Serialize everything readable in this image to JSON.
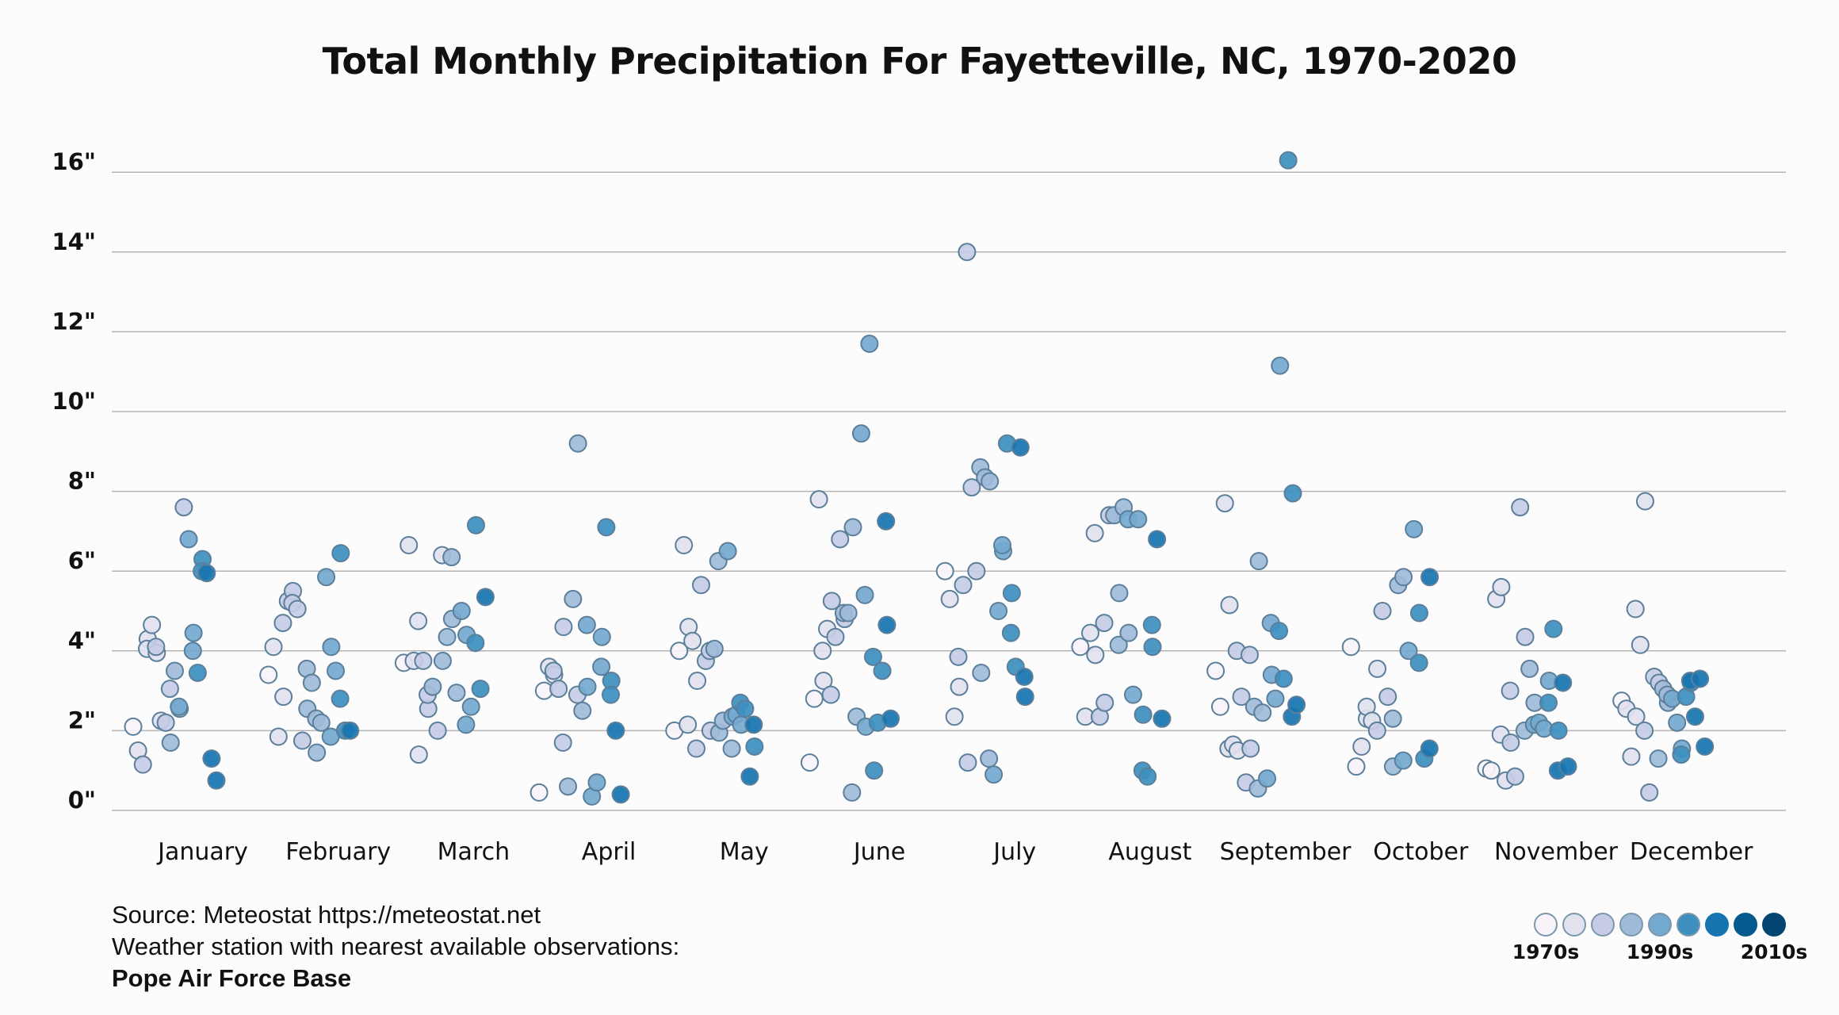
{
  "chart_data": {
    "type": "scatter",
    "title": "Total Monthly Precipitation For Fayetteville, NC, 1970-2020",
    "xlabel": "",
    "ylabel": "",
    "ylim": [
      0,
      16.5
    ],
    "y_ticks": [
      "0\"",
      "2\"",
      "4\"",
      "6\"",
      "8\"",
      "10\"",
      "12\"",
      "14\"",
      "16\""
    ],
    "y_tick_values": [
      0,
      2,
      4,
      6,
      8,
      10,
      12,
      14,
      16
    ],
    "grid": "horizontal",
    "categories": [
      "January",
      "February",
      "March",
      "April",
      "May",
      "June",
      "July",
      "August",
      "September",
      "October",
      "November",
      "December"
    ],
    "point_encoding": "each point is [precipitation inches, decade shade index 0-8]",
    "series": [
      {
        "month": "January",
        "points": [
          [
            2.1,
            0
          ],
          [
            1.5,
            1
          ],
          [
            1.15,
            2
          ],
          [
            4.3,
            1
          ],
          [
            4.05,
            1
          ],
          [
            4.65,
            1
          ],
          [
            3.95,
            1
          ],
          [
            4.1,
            2
          ],
          [
            2.25,
            1
          ],
          [
            2.2,
            2
          ],
          [
            1.7,
            3
          ],
          [
            3.05,
            2
          ],
          [
            3.5,
            3
          ],
          [
            2.55,
            3
          ],
          [
            2.6,
            4
          ],
          [
            7.6,
            2
          ],
          [
            6.8,
            4
          ],
          [
            4.45,
            4
          ],
          [
            4.0,
            4
          ],
          [
            3.45,
            5
          ],
          [
            6.3,
            5
          ],
          [
            6.0,
            5
          ],
          [
            5.95,
            6
          ],
          [
            1.3,
            6
          ],
          [
            0.75,
            6
          ]
        ]
      },
      {
        "month": "February",
        "points": [
          [
            3.4,
            0
          ],
          [
            4.1,
            1
          ],
          [
            1.85,
            1
          ],
          [
            2.85,
            1
          ],
          [
            4.7,
            2
          ],
          [
            5.25,
            2
          ],
          [
            5.5,
            2
          ],
          [
            5.2,
            2
          ],
          [
            5.05,
            2
          ],
          [
            1.75,
            2
          ],
          [
            2.55,
            3
          ],
          [
            3.55,
            3
          ],
          [
            3.2,
            3
          ],
          [
            1.45,
            3
          ],
          [
            2.3,
            3
          ],
          [
            2.2,
            3
          ],
          [
            5.85,
            4
          ],
          [
            4.1,
            4
          ],
          [
            1.85,
            4
          ],
          [
            3.5,
            4
          ],
          [
            6.45,
            5
          ],
          [
            2.8,
            5
          ],
          [
            2.0,
            5
          ],
          [
            2.0,
            6
          ]
        ]
      },
      {
        "month": "March",
        "points": [
          [
            3.7,
            0
          ],
          [
            6.65,
            1
          ],
          [
            3.75,
            1
          ],
          [
            1.4,
            1
          ],
          [
            4.75,
            1
          ],
          [
            3.75,
            2
          ],
          [
            2.55,
            2
          ],
          [
            2.9,
            2
          ],
          [
            3.1,
            3
          ],
          [
            2.0,
            2
          ],
          [
            3.75,
            3
          ],
          [
            6.4,
            1
          ],
          [
            4.35,
            3
          ],
          [
            4.8,
            3
          ],
          [
            6.35,
            3
          ],
          [
            2.95,
            3
          ],
          [
            5.0,
            4
          ],
          [
            4.4,
            4
          ],
          [
            2.15,
            4
          ],
          [
            2.6,
            4
          ],
          [
            7.15,
            5
          ],
          [
            4.2,
            5
          ],
          [
            3.05,
            5
          ],
          [
            5.35,
            6
          ]
        ]
      },
      {
        "month": "April",
        "points": [
          [
            0.45,
            0
          ],
          [
            3.0,
            0
          ],
          [
            3.6,
            1
          ],
          [
            3.4,
            1
          ],
          [
            3.5,
            2
          ],
          [
            3.05,
            2
          ],
          [
            4.6,
            2
          ],
          [
            1.7,
            2
          ],
          [
            0.6,
            3
          ],
          [
            5.3,
            3
          ],
          [
            9.2,
            3
          ],
          [
            2.9,
            2
          ],
          [
            2.5,
            3
          ],
          [
            3.1,
            4
          ],
          [
            4.65,
            4
          ],
          [
            0.35,
            4
          ],
          [
            0.7,
            4
          ],
          [
            4.35,
            4
          ],
          [
            3.6,
            4
          ],
          [
            7.1,
            5
          ],
          [
            3.25,
            5
          ],
          [
            2.9,
            5
          ],
          [
            2.0,
            6
          ],
          [
            0.4,
            6
          ]
        ]
      },
      {
        "month": "May",
        "points": [
          [
            2.0,
            0
          ],
          [
            4.0,
            0
          ],
          [
            6.65,
            1
          ],
          [
            4.6,
            1
          ],
          [
            2.15,
            1
          ],
          [
            4.25,
            1
          ],
          [
            3.25,
            1
          ],
          [
            1.55,
            2
          ],
          [
            5.65,
            2
          ],
          [
            3.75,
            2
          ],
          [
            2.0,
            2
          ],
          [
            4.0,
            2
          ],
          [
            4.05,
            3
          ],
          [
            1.95,
            3
          ],
          [
            6.25,
            3
          ],
          [
            2.25,
            3
          ],
          [
            6.5,
            4
          ],
          [
            2.35,
            4
          ],
          [
            1.55,
            3
          ],
          [
            2.4,
            4
          ],
          [
            2.15,
            4
          ],
          [
            2.7,
            5
          ],
          [
            2.55,
            5
          ],
          [
            0.85,
            6
          ],
          [
            1.6,
            5
          ],
          [
            2.15,
            6
          ]
        ]
      },
      {
        "month": "June",
        "points": [
          [
            1.2,
            0
          ],
          [
            2.8,
            0
          ],
          [
            7.8,
            1
          ],
          [
            3.25,
            1
          ],
          [
            4.0,
            1
          ],
          [
            4.55,
            1
          ],
          [
            5.25,
            2
          ],
          [
            2.9,
            2
          ],
          [
            4.35,
            2
          ],
          [
            6.8,
            2
          ],
          [
            4.8,
            2
          ],
          [
            4.95,
            3
          ],
          [
            4.95,
            3
          ],
          [
            7.1,
            3
          ],
          [
            0.45,
            3
          ],
          [
            2.35,
            3
          ],
          [
            9.45,
            4
          ],
          [
            2.1,
            4
          ],
          [
            5.4,
            4
          ],
          [
            11.7,
            4
          ],
          [
            1.0,
            5
          ],
          [
            3.85,
            5
          ],
          [
            2.2,
            5
          ],
          [
            3.5,
            5
          ],
          [
            4.65,
            6
          ],
          [
            7.25,
            6
          ],
          [
            2.3,
            6
          ]
        ]
      },
      {
        "month": "July",
        "points": [
          [
            6.0,
            0
          ],
          [
            5.3,
            1
          ],
          [
            2.35,
            1
          ],
          [
            3.1,
            1
          ],
          [
            3.85,
            2
          ],
          [
            5.65,
            2
          ],
          [
            1.2,
            2
          ],
          [
            14.0,
            2
          ],
          [
            8.1,
            2
          ],
          [
            6.0,
            2
          ],
          [
            3.45,
            3
          ],
          [
            8.6,
            3
          ],
          [
            8.35,
            3
          ],
          [
            8.25,
            3
          ],
          [
            1.3,
            3
          ],
          [
            0.9,
            4
          ],
          [
            5.0,
            4
          ],
          [
            6.5,
            4
          ],
          [
            6.65,
            4
          ],
          [
            9.2,
            5
          ],
          [
            5.45,
            5
          ],
          [
            4.45,
            5
          ],
          [
            3.6,
            5
          ],
          [
            9.1,
            6
          ],
          [
            2.85,
            6
          ],
          [
            3.35,
            6
          ]
        ]
      },
      {
        "month": "August",
        "points": [
          [
            4.1,
            0
          ],
          [
            2.35,
            1
          ],
          [
            4.45,
            1
          ],
          [
            3.9,
            1
          ],
          [
            6.95,
            1
          ],
          [
            2.35,
            2
          ],
          [
            2.7,
            2
          ],
          [
            4.7,
            2
          ],
          [
            7.4,
            2
          ],
          [
            7.4,
            3
          ],
          [
            5.45,
            3
          ],
          [
            4.15,
            3
          ],
          [
            7.6,
            3
          ],
          [
            4.45,
            3
          ],
          [
            7.3,
            4
          ],
          [
            2.9,
            4
          ],
          [
            7.3,
            4
          ],
          [
            2.4,
            5
          ],
          [
            1.0,
            5
          ],
          [
            0.85,
            5
          ],
          [
            4.1,
            5
          ],
          [
            4.65,
            5
          ],
          [
            6.8,
            6
          ],
          [
            2.3,
            6
          ]
        ]
      },
      {
        "month": "September",
        "points": [
          [
            3.5,
            0
          ],
          [
            2.6,
            0
          ],
          [
            7.7,
            1
          ],
          [
            5.15,
            1
          ],
          [
            1.55,
            1
          ],
          [
            1.65,
            1
          ],
          [
            1.5,
            1
          ],
          [
            4.0,
            2
          ],
          [
            2.85,
            2
          ],
          [
            0.7,
            2
          ],
          [
            1.55,
            2
          ],
          [
            3.9,
            2
          ],
          [
            2.6,
            3
          ],
          [
            6.25,
            3
          ],
          [
            0.55,
            3
          ],
          [
            2.45,
            3
          ],
          [
            0.8,
            4
          ],
          [
            3.4,
            4
          ],
          [
            4.7,
            4
          ],
          [
            2.8,
            4
          ],
          [
            11.15,
            4
          ],
          [
            4.5,
            5
          ],
          [
            3.3,
            5
          ],
          [
            16.3,
            5
          ],
          [
            7.95,
            5
          ],
          [
            2.35,
            6
          ],
          [
            2.65,
            6
          ]
        ]
      },
      {
        "month": "October",
        "points": [
          [
            4.1,
            0
          ],
          [
            1.1,
            0
          ],
          [
            1.6,
            1
          ],
          [
            2.3,
            1
          ],
          [
            2.6,
            1
          ],
          [
            2.25,
            1
          ],
          [
            3.55,
            1
          ],
          [
            2.0,
            2
          ],
          [
            5.0,
            2
          ],
          [
            2.85,
            2
          ],
          [
            1.1,
            3
          ],
          [
            2.3,
            3
          ],
          [
            5.65,
            3
          ],
          [
            5.85,
            3
          ],
          [
            1.25,
            4
          ],
          [
            4.0,
            4
          ],
          [
            7.05,
            4
          ],
          [
            4.95,
            5
          ],
          [
            3.7,
            5
          ],
          [
            1.3,
            5
          ],
          [
            5.85,
            6
          ],
          [
            1.55,
            6
          ]
        ]
      },
      {
        "month": "November",
        "points": [
          [
            1.05,
            0
          ],
          [
            1.0,
            0
          ],
          [
            5.3,
            1
          ],
          [
            5.6,
            1
          ],
          [
            1.9,
            1
          ],
          [
            0.75,
            1
          ],
          [
            1.7,
            2
          ],
          [
            3.0,
            2
          ],
          [
            0.85,
            2
          ],
          [
            7.6,
            2
          ],
          [
            4.35,
            2
          ],
          [
            2.0,
            3
          ],
          [
            3.55,
            3
          ],
          [
            2.7,
            3
          ],
          [
            2.15,
            4
          ],
          [
            2.2,
            4
          ],
          [
            2.05,
            4
          ],
          [
            3.25,
            4
          ],
          [
            2.7,
            5
          ],
          [
            4.55,
            5
          ],
          [
            2.0,
            5
          ],
          [
            1.0,
            6
          ],
          [
            3.2,
            6
          ],
          [
            1.1,
            6
          ]
        ]
      },
      {
        "month": "December",
        "points": [
          [
            2.75,
            0
          ],
          [
            2.55,
            1
          ],
          [
            1.35,
            1
          ],
          [
            2.35,
            1
          ],
          [
            5.05,
            1
          ],
          [
            4.15,
            1
          ],
          [
            7.75,
            1
          ],
          [
            2.0,
            2
          ],
          [
            0.45,
            2
          ],
          [
            3.35,
            2
          ],
          [
            3.2,
            2
          ],
          [
            1.3,
            3
          ],
          [
            3.05,
            3
          ],
          [
            2.7,
            3
          ],
          [
            2.9,
            3
          ],
          [
            2.8,
            4
          ],
          [
            2.2,
            4
          ],
          [
            1.55,
            4
          ],
          [
            1.4,
            5
          ],
          [
            2.85,
            5
          ],
          [
            3.2,
            5
          ],
          [
            3.25,
            6
          ],
          [
            2.35,
            6
          ],
          [
            3.3,
            6
          ],
          [
            1.6,
            6
          ]
        ]
      }
    ],
    "legend": {
      "placement": "bottom-right",
      "shades": [
        "#f7f3f9",
        "#e2e2ef",
        "#c6cce5",
        "#a0bbd9",
        "#74a9cf",
        "#3d8fc0",
        "#1674b0",
        "#045a8d",
        "#034571"
      ],
      "labels": [
        "1970s",
        "1990s",
        "2010s"
      ]
    },
    "point_stroke": "#5b7f9a",
    "grid_color": "#b5b5b5"
  },
  "footer": {
    "source": "Source: Meteostat https://meteostat.net",
    "station_note": "Weather station with nearest available observations:",
    "station": "Pope Air Force Base"
  }
}
